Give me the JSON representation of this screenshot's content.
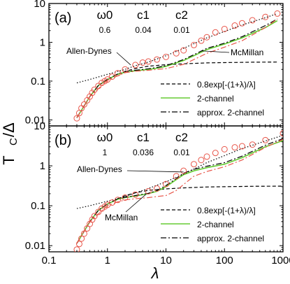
{
  "figure": {
    "ylabel_main": "T",
    "ylabel_sub": "C",
    "ylabel_rest": "/Δ",
    "xlabel": "λ"
  },
  "chart_data": [
    {
      "type": "line",
      "panel_label": "(a)",
      "x_scale": "log",
      "y_scale": "log",
      "xlim": [
        0.1,
        1000
      ],
      "ylim": [
        0.007,
        10
      ],
      "x_ticks": [
        {
          "value": 0.1,
          "label": "0.1"
        },
        {
          "value": 1,
          "label": "1"
        },
        {
          "value": 10,
          "label": "10"
        },
        {
          "value": 100,
          "label": "100"
        },
        {
          "value": 1000,
          "label": "1000"
        }
      ],
      "y_ticks": [
        {
          "value": 0.01,
          "label": "0.01"
        },
        {
          "value": 0.1,
          "label": "0.1"
        },
        {
          "value": 1,
          "label": "1"
        },
        {
          "value": 10,
          "label": "10"
        }
      ],
      "x_tick_labels_visible": false,
      "parameters": [
        {
          "name": "ω0",
          "value": "0.6"
        },
        {
          "name": "c1",
          "value": "0.04"
        },
        {
          "name": "c2",
          "value": "0.01"
        }
      ],
      "legend": {
        "placement": "lower-right",
        "entries": [
          {
            "series": 0,
            "label": "0.8exp[-(1+λ)/λ]"
          },
          {
            "series": 1,
            "label": "2-channel"
          },
          {
            "series": 2,
            "label": "approx. 2-channel"
          }
        ]
      },
      "series": [
        {
          "kind": "line",
          "style": "dashed",
          "color": "#000000",
          "x": [
            0.3,
            0.4,
            0.5,
            0.7,
            1,
            1.5,
            2,
            3,
            5,
            10,
            20,
            50,
            100,
            300,
            800
          ],
          "y": [
            0.0114,
            0.0229,
            0.0397,
            0.077,
            0.1083,
            0.1508,
            0.1785,
            0.2108,
            0.2426,
            0.2644,
            0.2797,
            0.2949,
            0.2998,
            0.3066,
            0.31
          ]
        },
        {
          "kind": "line",
          "style": "solid",
          "color": "#66cc33",
          "x": [
            0.3,
            0.4,
            0.5,
            0.7,
            1,
            1.5,
            2,
            3,
            5,
            7,
            10,
            20,
            30,
            50,
            100,
            200,
            500,
            800
          ],
          "y": [
            0.0114,
            0.0229,
            0.0397,
            0.077,
            0.11,
            0.15,
            0.17,
            0.185,
            0.2,
            0.215,
            0.24,
            0.34,
            0.45,
            0.65,
            0.9,
            1.3,
            2.4,
            3.6
          ]
        },
        {
          "kind": "line",
          "style": "dashdot",
          "color": "#000000",
          "x": [
            0.3,
            0.4,
            0.5,
            0.7,
            1,
            1.5,
            2,
            3,
            5,
            7,
            10,
            20,
            30,
            50,
            100,
            200,
            500,
            800
          ],
          "y": [
            0.0114,
            0.0229,
            0.0397,
            0.077,
            0.112,
            0.153,
            0.173,
            0.19,
            0.208,
            0.225,
            0.25,
            0.36,
            0.48,
            0.7,
            0.95,
            1.4,
            2.7,
            4.0
          ]
        },
        {
          "kind": "line",
          "style": "dotted",
          "color": "#000000",
          "x": [
            0.3,
            0.5,
            1,
            2,
            3,
            5,
            10,
            20,
            50,
            100,
            200,
            500,
            800
          ],
          "y": [
            0.09,
            0.11,
            0.15,
            0.2,
            0.25,
            0.31,
            0.45,
            0.7,
            1.3,
            1.9,
            2.8,
            4.3,
            5.5
          ]
        },
        {
          "kind": "line",
          "style": "dashdot",
          "color": "#e8564a",
          "x": [
            0.3,
            0.5,
            1,
            2,
            3,
            5,
            7,
            10,
            20,
            30,
            50,
            100,
            200,
            500,
            800
          ],
          "y": [
            0.0114,
            0.0397,
            0.105,
            0.165,
            0.18,
            0.19,
            0.2,
            0.21,
            0.27,
            0.36,
            0.52,
            0.75,
            1.1,
            2.4,
            4.0
          ]
        },
        {
          "kind": "scatter",
          "marker": "open-circle",
          "color": "#e8564a",
          "x": [
            0.3,
            0.33,
            0.36,
            0.4,
            0.45,
            0.5,
            0.55,
            0.6,
            0.7,
            0.8,
            0.9,
            1,
            1.2,
            1.5,
            2,
            3,
            4,
            5,
            7,
            10,
            15,
            20,
            30,
            40,
            50,
            70,
            100,
            150,
            200,
            300,
            500,
            800
          ],
          "y": [
            0.011,
            0.015,
            0.02,
            0.025,
            0.032,
            0.04,
            0.05,
            0.06,
            0.075,
            0.09,
            0.1,
            0.11,
            0.13,
            0.16,
            0.2,
            0.26,
            0.3,
            0.32,
            0.36,
            0.42,
            0.52,
            0.62,
            0.85,
            1.1,
            1.35,
            1.8,
            2.2,
            2.7,
            3.1,
            3.7,
            4.5,
            5.5
          ]
        }
      ],
      "annotations": [
        {
          "text": "Allen-Dynes",
          "points_to": [
            2.5,
            0.26
          ]
        },
        {
          "text": "McMillan",
          "points_to": [
            40,
            0.6
          ]
        }
      ]
    },
    {
      "type": "line",
      "panel_label": "(b)",
      "x_scale": "log",
      "y_scale": "log",
      "xlim": [
        0.1,
        1000
      ],
      "ylim": [
        0.007,
        10
      ],
      "x_ticks": [
        {
          "value": 0.1,
          "label": "0.1"
        },
        {
          "value": 1,
          "label": "1"
        },
        {
          "value": 10,
          "label": "10"
        },
        {
          "value": 100,
          "label": "100"
        },
        {
          "value": 1000,
          "label": "1000"
        }
      ],
      "y_ticks": [
        {
          "value": 0.01,
          "label": "0.01"
        },
        {
          "value": 0.1,
          "label": "0.1"
        },
        {
          "value": 1,
          "label": "1"
        },
        {
          "value": 10,
          "label": "10"
        }
      ],
      "x_tick_labels_visible": true,
      "parameters": [
        {
          "name": "ω0",
          "value": "1"
        },
        {
          "name": "c1",
          "value": "0.036"
        },
        {
          "name": "c2",
          "value": "0.01"
        }
      ],
      "legend": {
        "placement": "lower-right",
        "entries": [
          {
            "series": 0,
            "label": "0.8exp[-(1+λ)/λ]"
          },
          {
            "series": 1,
            "label": "2-channel"
          },
          {
            "series": 2,
            "label": "approx. 2-channel"
          }
        ]
      },
      "series": [
        {
          "kind": "line",
          "style": "dashed",
          "color": "#000000",
          "x": [
            0.3,
            0.4,
            0.5,
            0.7,
            1,
            1.5,
            2,
            3,
            5,
            10,
            20,
            50,
            100,
            300,
            1000
          ],
          "y": [
            0.0114,
            0.0229,
            0.0397,
            0.077,
            0.1083,
            0.1508,
            0.1785,
            0.2108,
            0.2426,
            0.2644,
            0.2797,
            0.2949,
            0.2998,
            0.3066,
            0.31
          ]
        },
        {
          "kind": "line",
          "style": "solid",
          "color": "#66cc33",
          "x": [
            0.3,
            0.4,
            0.5,
            0.7,
            1,
            1.5,
            2,
            3,
            5,
            7,
            10,
            15,
            20,
            30,
            50,
            100,
            200,
            500,
            1000
          ],
          "y": [
            0.0114,
            0.0229,
            0.0397,
            0.077,
            0.11,
            0.145,
            0.16,
            0.175,
            0.2,
            0.23,
            0.3,
            0.45,
            0.6,
            0.75,
            0.9,
            1.1,
            1.6,
            3.0,
            4.3
          ]
        },
        {
          "kind": "line",
          "style": "dashdot",
          "color": "#000000",
          "x": [
            0.3,
            0.4,
            0.5,
            0.7,
            1,
            1.5,
            2,
            3,
            5,
            7,
            10,
            15,
            20,
            30,
            50,
            100,
            200,
            500,
            1000
          ],
          "y": [
            0.0114,
            0.0229,
            0.0397,
            0.077,
            0.112,
            0.148,
            0.163,
            0.18,
            0.205,
            0.24,
            0.32,
            0.48,
            0.65,
            0.82,
            0.98,
            1.2,
            1.75,
            3.3,
            4.8
          ]
        },
        {
          "kind": "line",
          "style": "dotted",
          "color": "#000000",
          "x": [
            0.3,
            0.5,
            1,
            2,
            3,
            5,
            10,
            20,
            50,
            100,
            200,
            500,
            1000
          ],
          "y": [
            0.085,
            0.1,
            0.13,
            0.17,
            0.21,
            0.27,
            0.4,
            0.62,
            1.2,
            1.8,
            2.7,
            4.2,
            5.8
          ]
        },
        {
          "kind": "line",
          "style": "dashdot",
          "color": "#e8564a",
          "x": [
            0.3,
            0.5,
            1,
            1.5,
            2,
            3,
            5,
            7,
            10,
            15,
            20,
            30,
            50,
            100,
            200,
            500,
            1000
          ],
          "y": [
            0.0114,
            0.0397,
            0.1,
            0.125,
            0.14,
            0.15,
            0.16,
            0.17,
            0.18,
            0.24,
            0.34,
            0.55,
            0.72,
            0.95,
            1.4,
            2.9,
            4.6
          ]
        },
        {
          "kind": "scatter",
          "marker": "open-circle",
          "color": "#e8564a",
          "x": [
            0.3,
            0.33,
            0.36,
            0.4,
            0.45,
            0.5,
            0.55,
            0.6,
            0.7,
            0.8,
            0.9,
            1,
            1.2,
            1.5,
            2,
            3,
            5,
            7,
            10,
            15,
            20,
            30,
            40,
            50,
            70,
            100,
            150,
            200,
            300,
            500,
            1000
          ],
          "y": [
            0.008,
            0.011,
            0.015,
            0.02,
            0.027,
            0.035,
            0.045,
            0.055,
            0.07,
            0.085,
            0.095,
            0.105,
            0.12,
            0.14,
            0.16,
            0.19,
            0.23,
            0.27,
            0.35,
            0.55,
            0.75,
            1.1,
            1.4,
            1.7,
            2.1,
            2.6,
            2.9,
            3.1,
            3.4,
            4.4,
            6.5
          ]
        }
      ],
      "annotations": [
        {
          "text": "Allen-Dynes",
          "points_to": [
            20,
            0.7
          ]
        },
        {
          "text": "McMillan",
          "points_to": [
            4.5,
            0.19
          ]
        }
      ]
    }
  ]
}
